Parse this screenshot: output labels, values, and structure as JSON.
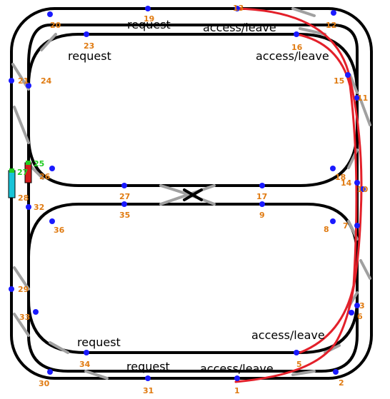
{
  "labels": {
    "request_top": "request",
    "request_upper_left": "request",
    "request_lower": "request",
    "request_bottom": "request",
    "access_top": "access/leave",
    "access_upper_right": "access/leave",
    "access_lower": "access/leave",
    "access_bottom": "access/leave"
  },
  "sensors": {
    "s1": "1",
    "s2": "2",
    "s3": "3",
    "s6": "6",
    "s5": "5",
    "s7": "7",
    "s8": "8",
    "s9": "9",
    "s10": "10",
    "s11": "11",
    "s12": "12",
    "s13": "13",
    "s14": "14",
    "s15": "15",
    "s16": "16",
    "s17": "17",
    "s18": "18",
    "s19": "19",
    "s20": "20",
    "s21": "21",
    "s23": "23",
    "s24": "24",
    "s25": "25",
    "s26": "26",
    "s27a": "27",
    "s27b": "27",
    "s28": "28",
    "s29": "29",
    "s30": "30",
    "s31": "31",
    "s32": "32",
    "s33": "33",
    "s34": "34",
    "s35": "35",
    "s36": "36"
  },
  "colors": {
    "track": "#000000",
    "switch": "#a0a0a0",
    "sensor": "#1a1aff",
    "label_number": "#e07b12",
    "route": "#e3202a",
    "train_a": "#19c4d8",
    "train_b": "#d41c1c"
  }
}
